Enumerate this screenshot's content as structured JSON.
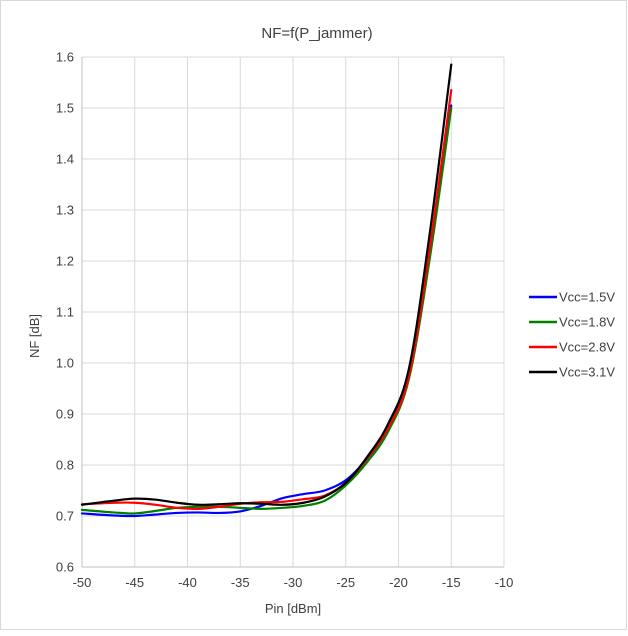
{
  "chart_data": {
    "type": "line",
    "title": "NF=f(P_jammer)",
    "xlabel": "Pin [dBm]",
    "ylabel": "NF [dB]",
    "xlim": [
      -50,
      -10
    ],
    "ylim": [
      0.6,
      1.6
    ],
    "xticks": [
      -50,
      -45,
      -40,
      -35,
      -30,
      -25,
      -20,
      -15,
      -10
    ],
    "yticks": [
      0.6,
      0.7,
      0.8,
      0.9,
      1.0,
      1.1,
      1.2,
      1.3,
      1.4,
      1.5,
      1.6
    ],
    "xtick_labels": [
      "-50",
      "-45",
      "-40",
      "-35",
      "-30",
      "-25",
      "-20",
      "-15",
      "-10"
    ],
    "ytick_labels": [
      "0.6",
      "0.7",
      "0.8",
      "0.9",
      "1.0",
      "1.1",
      "1.2",
      "1.3",
      "1.4",
      "1.5",
      "1.6"
    ],
    "grid": true,
    "legend_position": "right",
    "series": [
      {
        "name": "Vcc=1.5V",
        "color": "#0000ff",
        "x": [
          -50,
          -47,
          -45,
          -43,
          -41,
          -39,
          -37,
          -35,
          -33,
          -31,
          -29,
          -27,
          -25,
          -23,
          -21,
          -19,
          -17,
          -15
        ],
        "y": [
          0.705,
          0.701,
          0.7,
          0.703,
          0.706,
          0.707,
          0.706,
          0.709,
          0.72,
          0.735,
          0.743,
          0.75,
          0.77,
          0.812,
          0.872,
          0.98,
          1.22,
          1.505
        ]
      },
      {
        "name": "Vcc=1.8V",
        "color": "#008000",
        "x": [
          -50,
          -47,
          -45,
          -43,
          -41,
          -39,
          -37,
          -35,
          -33,
          -31,
          -29,
          -27,
          -25,
          -23,
          -21,
          -19,
          -17,
          -15
        ],
        "y": [
          0.712,
          0.707,
          0.705,
          0.71,
          0.716,
          0.718,
          0.718,
          0.716,
          0.714,
          0.716,
          0.72,
          0.73,
          0.76,
          0.805,
          0.865,
          0.97,
          1.21,
          1.5
        ]
      },
      {
        "name": "Vcc=2.8V",
        "color": "#ff0000",
        "x": [
          -50,
          -47,
          -45,
          -43,
          -41,
          -39,
          -37,
          -35,
          -33,
          -31,
          -29,
          -27,
          -25,
          -23,
          -21,
          -19,
          -17,
          -15
        ],
        "y": [
          0.723,
          0.726,
          0.726,
          0.722,
          0.716,
          0.714,
          0.718,
          0.724,
          0.727,
          0.728,
          0.733,
          0.74,
          0.765,
          0.812,
          0.872,
          0.975,
          1.23,
          1.535
        ]
      },
      {
        "name": "Vcc=3.1V",
        "color": "#000000",
        "x": [
          -50,
          -47,
          -45,
          -43,
          -41,
          -39,
          -37,
          -35,
          -33,
          -31,
          -29,
          -27,
          -25,
          -23,
          -21,
          -19,
          -17,
          -15
        ],
        "y": [
          0.722,
          0.73,
          0.734,
          0.732,
          0.726,
          0.722,
          0.723,
          0.725,
          0.724,
          0.722,
          0.726,
          0.738,
          0.765,
          0.815,
          0.88,
          0.99,
          1.26,
          1.585
        ]
      }
    ]
  }
}
